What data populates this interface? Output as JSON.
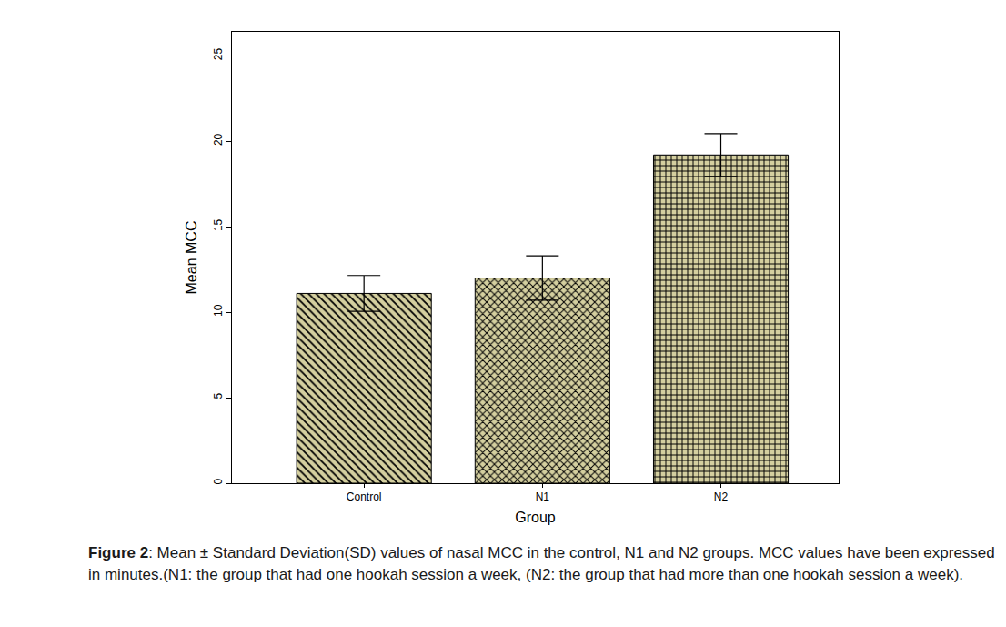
{
  "chart_data": {
    "type": "bar",
    "categories": [
      "Control",
      "N1",
      "N2"
    ],
    "values": [
      11.1,
      12.0,
      19.2
    ],
    "error": [
      1.05,
      1.3,
      1.25
    ],
    "color": "#d4cf9f",
    "x_label": "Group",
    "y_label": "Mean MCC",
    "ylim": [
      0,
      26.4
    ],
    "yticks": [
      0,
      5,
      10,
      15,
      20,
      25
    ],
    "grid": false,
    "caption": {
      "label": "Figure 2",
      "text": ": Mean ± Standard Deviation(SD) values of nasal MCC in the control, N1 and N2 groups. MCC values have been expressed in minutes.(N1: the group that had one hookah session a week, (N2: the group that had more than one hookah session a week)."
    }
  }
}
